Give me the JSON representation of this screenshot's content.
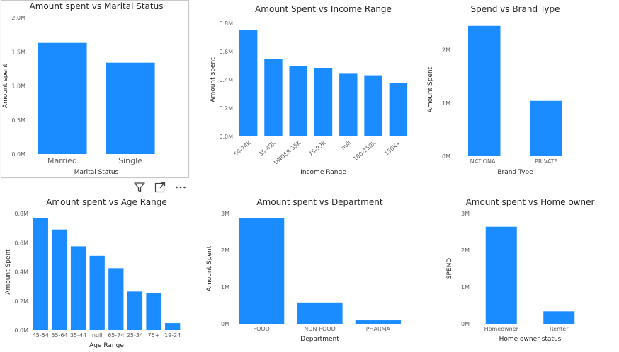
{
  "colors": {
    "bar": "#1a8cff",
    "tick": "#605e5c",
    "text": "#252423"
  },
  "visual_toolbar": {
    "filter_icon": "filter-icon",
    "focus_icon": "focus-mode-icon",
    "more_icon": "more-options-icon"
  },
  "chart_data": [
    {
      "type": "bar",
      "title": "Amount spent vs Marital Status",
      "xlabel": "Marital Status",
      "ylabel": "Amount spent",
      "categories": [
        "Married",
        "Single"
      ],
      "values": [
        1630000,
        1340000
      ],
      "ylim": [
        0,
        2000000
      ],
      "yticks": [
        0,
        500000,
        1000000,
        1500000,
        2000000
      ],
      "ytick_labels": [
        "0.0M",
        "0.5M",
        "1.0M",
        "1.5M",
        "2.0M"
      ],
      "rotate_x": false,
      "grid": false
    },
    {
      "type": "bar",
      "title": "Amount Spent vs Income Range",
      "xlabel": "Income Range",
      "ylabel": "Amount spent",
      "categories": [
        "50-74K",
        "35-49K",
        "UNDER 35K",
        "75-99K",
        "null",
        "100-150K",
        "150K+"
      ],
      "values": [
        750000,
        550000,
        500000,
        485000,
        448000,
        432000,
        378000
      ],
      "ylim": [
        0,
        800000
      ],
      "yticks": [
        0,
        200000,
        400000,
        600000,
        800000
      ],
      "ytick_labels": [
        "0.0M",
        "0.2M",
        "0.4M",
        "0.6M",
        "0.8M"
      ],
      "rotate_x": true,
      "grid": false
    },
    {
      "type": "bar",
      "title": "Spend vs Brand Type",
      "xlabel": "Brand Type",
      "ylabel": "Amount Spent",
      "categories": [
        "NATIONAL",
        "PRIVATE"
      ],
      "values": [
        2450000,
        1040000
      ],
      "ylim": [
        0,
        2500000
      ],
      "yticks": [
        0,
        1000000,
        2000000
      ],
      "ytick_labels": [
        "0M",
        "1M",
        "2M"
      ],
      "rotate_x": false,
      "grid": false
    },
    {
      "type": "bar",
      "title": "Amount spent vs Age Range",
      "xlabel": "Age Range",
      "ylabel": "Amount Spent",
      "categories": [
        "45-54",
        "55-64",
        "35-44",
        "null",
        "65-74",
        "25-34",
        "75+",
        "19-24"
      ],
      "values": [
        770000,
        690000,
        575000,
        510000,
        425000,
        265000,
        255000,
        48000
      ],
      "ylim": [
        0,
        800000
      ],
      "yticks": [
        0,
        200000,
        400000,
        600000,
        800000
      ],
      "ytick_labels": [
        "0.0M",
        "0.2M",
        "0.4M",
        "0.6M",
        "0.8M"
      ],
      "rotate_x": false,
      "grid": false
    },
    {
      "type": "bar",
      "title": "Amount spent vs Department",
      "xlabel": "Department",
      "ylabel": "Amount Spent",
      "categories": [
        "FOOD",
        "NON-FOOD",
        "PHARMA"
      ],
      "values": [
        2870000,
        580000,
        95000
      ],
      "ylim": [
        0,
        3000000
      ],
      "yticks": [
        0,
        1000000,
        2000000,
        3000000
      ],
      "ytick_labels": [
        "0M",
        "1M",
        "2M",
        "3M"
      ],
      "rotate_x": false,
      "grid": false
    },
    {
      "type": "bar",
      "title": "Amount spent vs Home owner",
      "xlabel": "Home owner status",
      "ylabel": "SPEND",
      "categories": [
        "Homeowner",
        "Renter"
      ],
      "values": [
        2640000,
        340000
      ],
      "ylim": [
        0,
        3000000
      ],
      "yticks": [
        0,
        1000000,
        2000000,
        3000000
      ],
      "ytick_labels": [
        "0M",
        "1M",
        "2M",
        "3M"
      ],
      "rotate_x": false,
      "grid": false
    }
  ]
}
